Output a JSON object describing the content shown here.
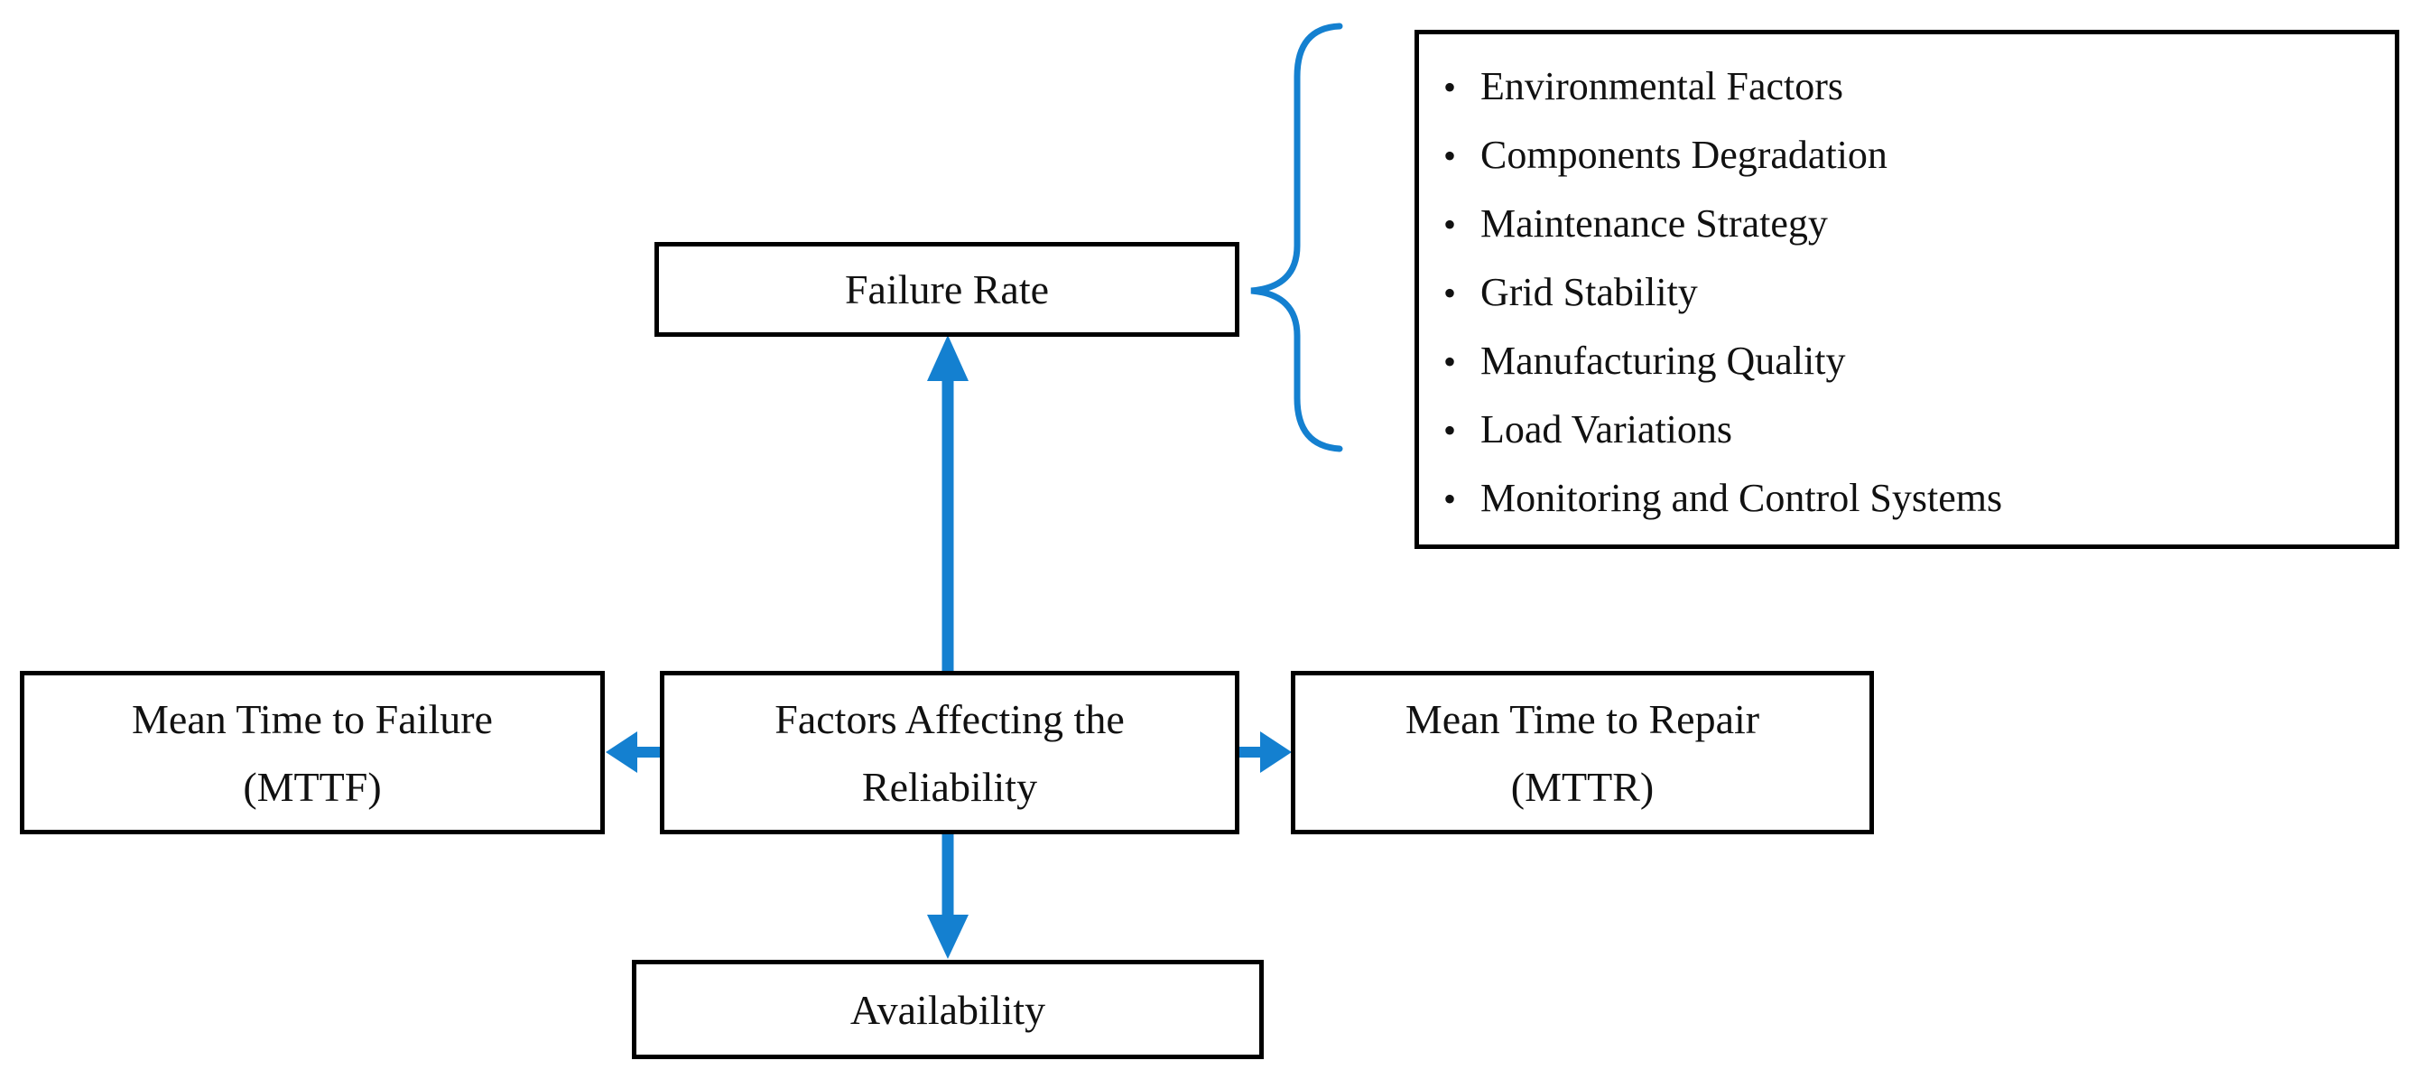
{
  "diagram": {
    "center_box": {
      "line1": "Factors Affecting the",
      "line2": "Reliability"
    },
    "top_box": {
      "label": "Failure Rate"
    },
    "left_box": {
      "line1": "Mean Time to Failure",
      "line2": "(MTTF)"
    },
    "right_box": {
      "line1": "Mean Time to Repair",
      "line2": "(MTTR)"
    },
    "bottom_box": {
      "label": "Availability"
    },
    "failure_rate_factors": {
      "bullet": "•",
      "items": [
        "Environmental Factors",
        "Components Degradation",
        "Maintenance Strategy",
        "Grid Stability",
        "Manufacturing Quality",
        "Load Variations",
        "Monitoring and Control Systems"
      ]
    },
    "colors": {
      "arrow": "#1480D0",
      "box_border": "#000000",
      "text": "#111111",
      "background": "#ffffff"
    }
  }
}
